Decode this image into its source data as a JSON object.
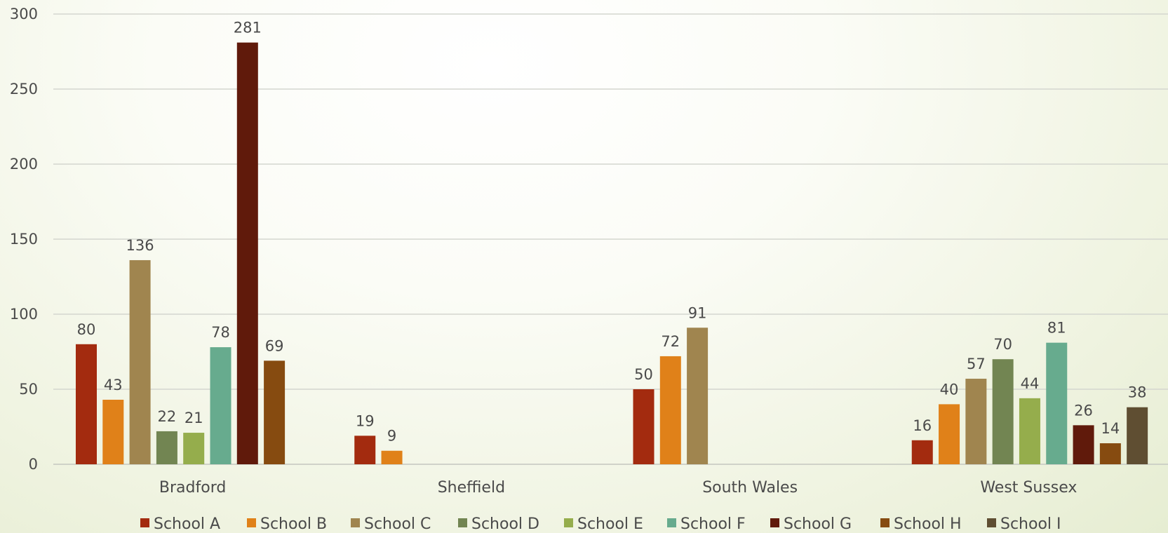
{
  "chart_data": {
    "type": "bar",
    "categories": [
      "Bradford",
      "Sheffield",
      "South Wales",
      "West Sussex"
    ],
    "ylim": [
      0,
      300
    ],
    "yticks": [
      0,
      50,
      100,
      150,
      200,
      250,
      300
    ],
    "grid": true,
    "legend_position": "bottom",
    "series": [
      {
        "name": "School A",
        "color": "#a32b0f",
        "values": [
          80,
          19,
          50,
          16
        ]
      },
      {
        "name": "School B",
        "color": "#e08119",
        "values": [
          43,
          9,
          72,
          40
        ]
      },
      {
        "name": "School C",
        "color": "#a0854f",
        "values": [
          136,
          null,
          91,
          57
        ]
      },
      {
        "name": "School D",
        "color": "#728552",
        "values": [
          22,
          null,
          null,
          70
        ]
      },
      {
        "name": "School E",
        "color": "#95ad4c",
        "values": [
          21,
          null,
          null,
          44
        ]
      },
      {
        "name": "School F",
        "color": "#67ab8e",
        "values": [
          78,
          null,
          null,
          81
        ]
      },
      {
        "name": "School G",
        "color": "#601a0b",
        "values": [
          281,
          null,
          null,
          26
        ]
      },
      {
        "name": "School H",
        "color": "#864b10",
        "values": [
          69,
          null,
          null,
          14
        ]
      },
      {
        "name": "School I",
        "color": "#5f4e32",
        "values": [
          null,
          null,
          null,
          38
        ]
      }
    ]
  }
}
